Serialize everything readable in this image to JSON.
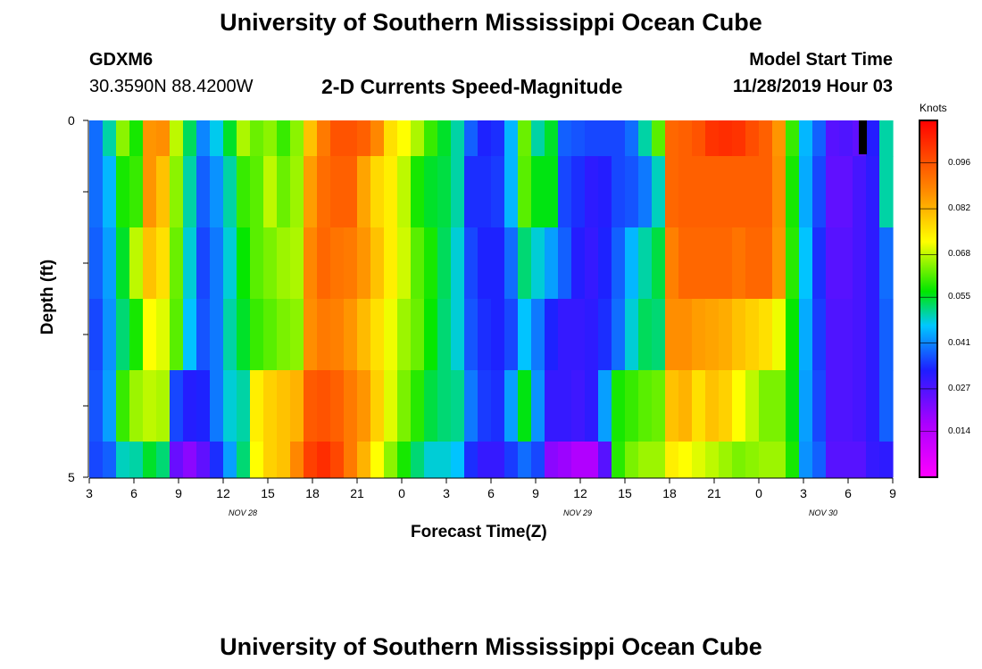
{
  "page": {
    "title_top": "University of Southern Mississippi Ocean Cube",
    "title_bottom": "University of Southern Mississippi Ocean Cube",
    "station_id": "GDXM6",
    "station_coords": "30.3590N 88.4200W",
    "model_start_label": "Model Start Time",
    "model_start_value": "11/28/2019 Hour 03"
  },
  "chart_data": {
    "type": "heatmap",
    "title": "2-D Currents Speed-Magnitude",
    "xlabel": "Forecast Time(Z)",
    "ylabel": "Depth (ft)",
    "y_ticks": [
      "0",
      "5"
    ],
    "ylim": [
      0,
      5
    ],
    "x_ticks": [
      "3",
      "6",
      "9",
      "12",
      "15",
      "18",
      "21",
      "0",
      "3",
      "6",
      "9",
      "12",
      "15",
      "18",
      "21",
      "0",
      "3",
      "6",
      "9"
    ],
    "date_labels": [
      "NOV 28",
      "NOV 29",
      "NOV 30"
    ],
    "x_range_hours": [
      3,
      57
    ],
    "colorbar": {
      "unit": "Knots",
      "ticks": [
        "0.096",
        "0.082",
        "0.068",
        "0.055",
        "0.041",
        "0.027",
        "0.014"
      ],
      "tick_values": [
        0.096,
        0.082,
        0.068,
        0.055,
        0.041,
        0.027,
        0.014
      ],
      "min": 0.0,
      "max": 0.109
    },
    "levels": 5,
    "grid": [
      [
        0.039,
        0.05,
        0.065,
        0.058,
        0.086,
        0.087,
        0.068,
        0.053,
        0.041,
        0.047,
        0.055,
        0.067,
        0.063,
        0.065,
        0.06,
        0.065,
        0.08,
        0.09,
        0.096,
        0.096,
        0.094,
        0.088,
        0.076,
        0.072,
        0.067,
        0.06,
        0.055,
        0.05,
        0.038,
        0.033,
        0.034,
        0.045,
        0.063,
        0.05,
        0.055,
        0.038,
        0.037,
        0.036,
        0.036,
        0.036,
        0.039,
        0.05,
        0.062,
        0.093,
        0.094,
        0.096,
        0.101,
        0.102,
        0.101,
        0.097,
        0.094,
        0.086,
        0.06,
        0.045,
        0.038,
        0.026,
        0.027,
        0.025,
        0.032,
        0.05
      ],
      [
        0.039,
        0.045,
        0.058,
        0.06,
        0.086,
        0.08,
        0.065,
        0.05,
        0.038,
        0.042,
        0.05,
        0.06,
        0.062,
        0.068,
        0.063,
        0.066,
        0.085,
        0.092,
        0.094,
        0.094,
        0.084,
        0.077,
        0.074,
        0.068,
        0.058,
        0.055,
        0.054,
        0.05,
        0.034,
        0.034,
        0.035,
        0.045,
        0.062,
        0.056,
        0.056,
        0.036,
        0.034,
        0.031,
        0.032,
        0.036,
        0.037,
        0.04,
        0.049,
        0.093,
        0.094,
        0.094,
        0.094,
        0.094,
        0.094,
        0.094,
        0.094,
        0.087,
        0.058,
        0.044,
        0.036,
        0.025,
        0.025,
        0.028,
        0.031,
        0.05
      ],
      [
        0.038,
        0.043,
        0.055,
        0.068,
        0.08,
        0.076,
        0.063,
        0.048,
        0.036,
        0.04,
        0.048,
        0.057,
        0.062,
        0.064,
        0.066,
        0.067,
        0.088,
        0.093,
        0.091,
        0.09,
        0.086,
        0.08,
        0.074,
        0.069,
        0.062,
        0.058,
        0.053,
        0.048,
        0.036,
        0.033,
        0.033,
        0.039,
        0.052,
        0.048,
        0.043,
        0.038,
        0.032,
        0.03,
        0.033,
        0.038,
        0.045,
        0.05,
        0.054,
        0.089,
        0.093,
        0.093,
        0.093,
        0.093,
        0.091,
        0.093,
        0.093,
        0.086,
        0.059,
        0.046,
        0.034,
        0.026,
        0.026,
        0.028,
        0.031,
        0.039
      ],
      [
        0.036,
        0.042,
        0.052,
        0.058,
        0.072,
        0.07,
        0.062,
        0.046,
        0.037,
        0.04,
        0.05,
        0.055,
        0.06,
        0.062,
        0.064,
        0.065,
        0.087,
        0.09,
        0.089,
        0.086,
        0.081,
        0.076,
        0.071,
        0.066,
        0.063,
        0.057,
        0.052,
        0.048,
        0.037,
        0.034,
        0.033,
        0.036,
        0.046,
        0.04,
        0.033,
        0.03,
        0.03,
        0.031,
        0.034,
        0.039,
        0.048,
        0.053,
        0.052,
        0.087,
        0.087,
        0.085,
        0.084,
        0.083,
        0.08,
        0.078,
        0.076,
        0.071,
        0.057,
        0.044,
        0.035,
        0.027,
        0.027,
        0.028,
        0.031,
        0.038
      ],
      [
        0.037,
        0.043,
        0.06,
        0.066,
        0.068,
        0.067,
        0.036,
        0.032,
        0.033,
        0.04,
        0.048,
        0.05,
        0.074,
        0.078,
        0.08,
        0.082,
        0.095,
        0.096,
        0.094,
        0.09,
        0.086,
        0.078,
        0.07,
        0.064,
        0.059,
        0.054,
        0.052,
        0.051,
        0.04,
        0.035,
        0.034,
        0.043,
        0.056,
        0.042,
        0.03,
        0.03,
        0.029,
        0.031,
        0.043,
        0.058,
        0.06,
        0.062,
        0.063,
        0.08,
        0.082,
        0.076,
        0.08,
        0.078,
        0.072,
        0.068,
        0.064,
        0.064,
        0.056,
        0.043,
        0.036,
        0.027,
        0.027,
        0.028,
        0.031,
        0.038
      ],
      [
        0.036,
        0.038,
        0.049,
        0.05,
        0.055,
        0.052,
        0.024,
        0.02,
        0.025,
        0.034,
        0.043,
        0.052,
        0.072,
        0.078,
        0.08,
        0.088,
        0.099,
        0.102,
        0.098,
        0.09,
        0.082,
        0.072,
        0.065,
        0.058,
        0.052,
        0.048,
        0.048,
        0.046,
        0.034,
        0.03,
        0.03,
        0.035,
        0.039,
        0.036,
        0.02,
        0.018,
        0.015,
        0.015,
        0.026,
        0.059,
        0.064,
        0.066,
        0.066,
        0.074,
        0.072,
        0.07,
        0.068,
        0.066,
        0.064,
        0.065,
        0.066,
        0.066,
        0.058,
        0.042,
        0.038,
        0.026,
        0.026,
        0.026,
        0.03,
        0.031
      ]
    ]
  }
}
